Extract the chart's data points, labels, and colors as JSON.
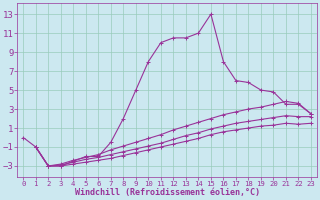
{
  "background_color": "#cce8f0",
  "grid_color": "#99ccbb",
  "line_color": "#993399",
  "xlabel": "Windchill (Refroidissement éolien,°C)",
  "yticks": [
    -3,
    -1,
    1,
    3,
    5,
    7,
    9,
    11,
    13
  ],
  "xlim": [
    -0.5,
    23.5
  ],
  "ylim": [
    -4.2,
    14.2
  ],
  "xticks": [
    0,
    1,
    2,
    3,
    4,
    5,
    6,
    7,
    8,
    9,
    10,
    11,
    12,
    13,
    14,
    15,
    16,
    17,
    18,
    19,
    20,
    21,
    22,
    23
  ],
  "line1_x": [
    0,
    1,
    2,
    3,
    4,
    5,
    6,
    7,
    8,
    9,
    10,
    11,
    12,
    13,
    14,
    15,
    16,
    17,
    18,
    19,
    20,
    21,
    22,
    23
  ],
  "line1_y": [
    0,
    -1,
    -3,
    -3,
    -2.5,
    -2,
    -2,
    -0.5,
    2,
    5,
    8,
    10,
    10.5,
    10.5,
    11,
    13,
    8,
    6.0,
    5.8,
    5.0,
    4.8,
    3.5,
    3.5,
    2.5
  ],
  "line2_x": [
    1,
    2,
    3,
    4,
    5,
    6,
    7,
    8,
    9,
    10,
    11,
    12,
    13,
    14,
    15,
    16,
    17,
    18,
    19,
    20,
    21,
    22,
    23
  ],
  "line2_y": [
    -1,
    -3,
    -2.8,
    -2.4,
    -2.1,
    -1.8,
    -1.3,
    -0.9,
    -0.5,
    -0.1,
    0.3,
    0.8,
    1.2,
    1.6,
    2.0,
    2.4,
    2.7,
    3.0,
    3.2,
    3.5,
    3.8,
    3.6,
    2.5
  ],
  "line3_x": [
    1,
    2,
    3,
    4,
    5,
    6,
    7,
    8,
    9,
    10,
    11,
    12,
    13,
    14,
    15,
    16,
    17,
    18,
    19,
    20,
    21,
    22,
    23
  ],
  "line3_y": [
    -1,
    -3,
    -2.9,
    -2.6,
    -2.3,
    -2.1,
    -1.8,
    -1.5,
    -1.2,
    -0.9,
    -0.6,
    -0.2,
    0.2,
    0.5,
    0.9,
    1.2,
    1.5,
    1.7,
    1.9,
    2.1,
    2.3,
    2.2,
    2.2
  ],
  "line4_x": [
    1,
    2,
    3,
    4,
    5,
    6,
    7,
    8,
    9,
    10,
    11,
    12,
    13,
    14,
    15,
    16,
    17,
    18,
    19,
    20,
    21,
    22,
    23
  ],
  "line4_y": [
    -1,
    -3,
    -3.0,
    -2.8,
    -2.6,
    -2.4,
    -2.2,
    -1.9,
    -1.6,
    -1.3,
    -1.0,
    -0.7,
    -0.4,
    -0.1,
    0.3,
    0.6,
    0.8,
    1.0,
    1.2,
    1.3,
    1.5,
    1.4,
    1.5
  ],
  "xlabel_fontsize": 6.0,
  "ytick_fontsize": 6.5,
  "xtick_fontsize": 5.2
}
